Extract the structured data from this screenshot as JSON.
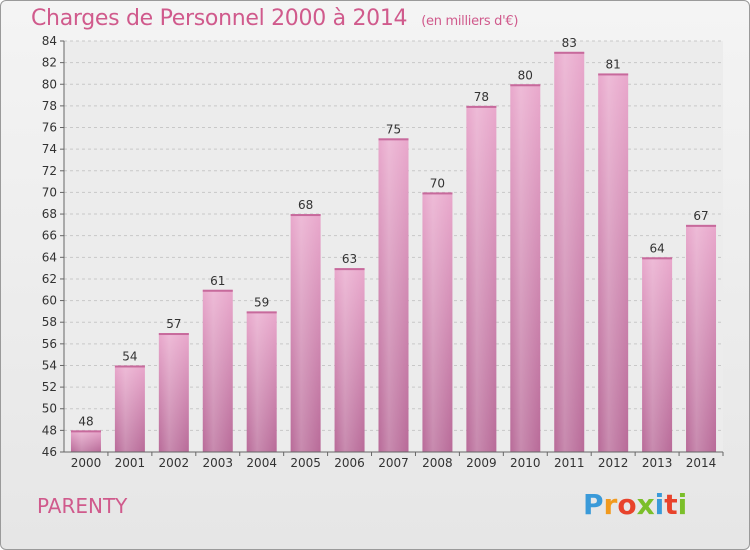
{
  "header": {
    "title": "Charges de Personnel 2000 à 2014",
    "subtitle": "(en milliers d'€)"
  },
  "footer": {
    "commune": "PARENTY",
    "logo": "Proxiti"
  },
  "colors": {
    "bar_top": "#e9a8cc",
    "bar_bottom": "#b86a98",
    "title": "#d05a8c"
  },
  "chart_data": {
    "type": "bar",
    "title": "Charges de Personnel 2000 à 2014",
    "subtitle": "(en milliers d'€)",
    "categories": [
      "2000",
      "2001",
      "2002",
      "2003",
      "2004",
      "2005",
      "2006",
      "2007",
      "2008",
      "2009",
      "2010",
      "2011",
      "2012",
      "2013",
      "2014"
    ],
    "values": [
      48,
      54,
      57,
      61,
      59,
      68,
      63,
      75,
      70,
      78,
      80,
      83,
      81,
      64,
      67
    ],
    "ylim": [
      46,
      84
    ],
    "yticks": [
      46,
      48,
      50,
      52,
      54,
      56,
      58,
      60,
      62,
      64,
      66,
      68,
      70,
      72,
      74,
      76,
      78,
      80,
      82,
      84
    ],
    "grid": true,
    "xlabel": "",
    "ylabel": ""
  }
}
